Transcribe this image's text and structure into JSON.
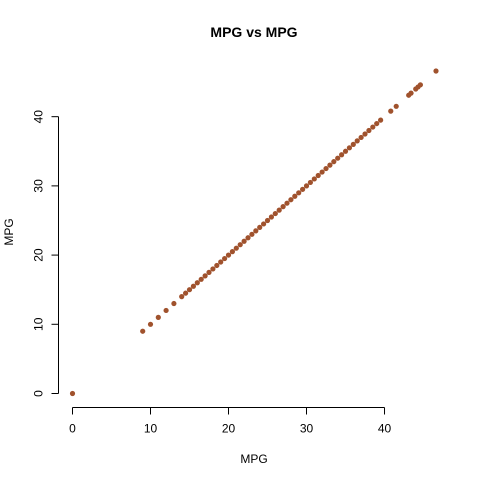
{
  "chart_data": {
    "type": "scatter",
    "title": "MPG vs MPG",
    "xlabel": "MPG",
    "ylabel": "MPG",
    "xlim": [
      0,
      46.6
    ],
    "ylim": [
      0,
      46.6
    ],
    "x_ticks": [
      0,
      10,
      20,
      30,
      40
    ],
    "y_ticks": [
      0,
      10,
      20,
      30,
      40
    ],
    "grid": false,
    "marker_color": "#A0522D",
    "series": [
      {
        "x": [
          0,
          9,
          10,
          11,
          12,
          13,
          14,
          14.5,
          15,
          15.5,
          16,
          16.5,
          17,
          17.5,
          18,
          18.5,
          19,
          19.5,
          20,
          20.5,
          21,
          21.5,
          22,
          22.5,
          23,
          23.5,
          24,
          24.5,
          25,
          25.5,
          26,
          26.5,
          27,
          27.5,
          28,
          28.5,
          29,
          29.5,
          30,
          30.5,
          31,
          31.5,
          32,
          32.5,
          33,
          33.5,
          34,
          34.5,
          35,
          35.5,
          36,
          36.5,
          37,
          37.5,
          38,
          38.5,
          39,
          39.5,
          40.8,
          41.5,
          43.1,
          43.4,
          44,
          44.3,
          44.6,
          46.6
        ],
        "y": [
          0,
          9,
          10,
          11,
          12,
          13,
          14,
          14.5,
          15,
          15.5,
          16,
          16.5,
          17,
          17.5,
          18,
          18.5,
          19,
          19.5,
          20,
          20.5,
          21,
          21.5,
          22,
          22.5,
          23,
          23.5,
          24,
          24.5,
          25,
          25.5,
          26,
          26.5,
          27,
          27.5,
          28,
          28.5,
          29,
          29.5,
          30,
          30.5,
          31,
          31.5,
          32,
          32.5,
          33,
          33.5,
          34,
          34.5,
          35,
          35.5,
          36,
          36.5,
          37,
          37.5,
          38,
          38.5,
          39,
          39.5,
          40.8,
          41.5,
          43.1,
          43.4,
          44,
          44.3,
          44.6,
          46.6
        ]
      }
    ]
  }
}
